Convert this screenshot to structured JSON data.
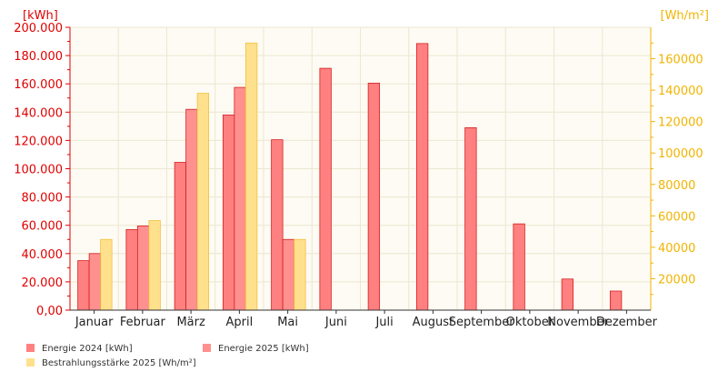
{
  "chart_data": {
    "type": "bar",
    "categories": [
      "Januar",
      "Februar",
      "März",
      "April",
      "Mai",
      "Juni",
      "Juli",
      "August",
      "September",
      "Oktober",
      "November",
      "Dezember"
    ],
    "series": [
      {
        "name": "Energie 2024 [kWh]",
        "axis": "left",
        "color": "#ff8080",
        "stroke": "#d42020",
        "values": [
          35000,
          57000,
          104500,
          138000,
          120500,
          171000,
          160500,
          188500,
          129000,
          61000,
          22000,
          13500
        ]
      },
      {
        "name": "Energie 2025 [kWh]",
        "axis": "left",
        "color": "#ff9090",
        "stroke": "#d42020",
        "values": [
          40000,
          59500,
          142000,
          157500,
          50000,
          null,
          null,
          null,
          null,
          null,
          null,
          null
        ]
      },
      {
        "name": "Bestrahlungsstärke 2025 [Wh/m²]",
        "axis": "right",
        "color": "#ffe08c",
        "stroke": "#f0c040",
        "values": [
          45000,
          57000,
          138000,
          170000,
          45000,
          null,
          null,
          null,
          null,
          null,
          null,
          null
        ]
      }
    ],
    "left_axis": {
      "unit_label": "[kWh]",
      "ylim": [
        0,
        200000
      ],
      "ticks": [
        0,
        20000,
        40000,
        60000,
        80000,
        100000,
        120000,
        140000,
        160000,
        180000,
        200000
      ],
      "tick_labels": [
        "0,00",
        "20.000",
        "40.000",
        "60.000",
        "80.000",
        "100.000",
        "120.000",
        "140.000",
        "160.000",
        "180.000",
        "200.000"
      ],
      "color": "#e00000"
    },
    "right_axis": {
      "unit_label": "[Wh/m²]",
      "ylim": [
        0,
        180000
      ],
      "ticks": [
        20000,
        40000,
        60000,
        80000,
        100000,
        120000,
        140000,
        160000
      ],
      "tick_labels": [
        "20000",
        "40000",
        "60000",
        "80000",
        "100000",
        "120000",
        "140000",
        "160000"
      ],
      "color": "#f0b400"
    },
    "grid": true,
    "legend": "bottom-left",
    "legend_entries": [
      "Energie 2024 [kWh]",
      "Energie 2025 [kWh]",
      "Bestrahlungsstärke 2025 [Wh/m²]"
    ]
  }
}
